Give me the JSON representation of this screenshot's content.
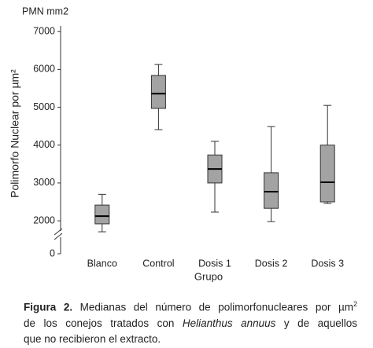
{
  "chart_data": {
    "type": "box",
    "unit_label": "PMN mm2",
    "ylabel": "Polimorfo Nuclear por µm²",
    "xlabel": "Grupo",
    "categories": [
      "Blanco",
      "Control",
      "Dosis 1",
      "Dosis 2",
      "Dosis 3"
    ],
    "boxes": [
      {
        "whisker_low": 1710,
        "q1": 1920,
        "median": 2125,
        "q3": 2415,
        "whisker_high": 2700
      },
      {
        "whisker_low": 4410,
        "q1": 4970,
        "median": 5360,
        "q3": 5840,
        "whisker_high": 6130
      },
      {
        "whisker_low": 2230,
        "q1": 3000,
        "median": 3370,
        "q3": 3740,
        "whisker_high": 4100
      },
      {
        "whisker_low": 1980,
        "q1": 2330,
        "median": 2770,
        "q3": 3270,
        "whisker_high": 4490
      },
      {
        "whisker_low": 2460,
        "q1": 2500,
        "median": 3020,
        "q3": 4000,
        "whisker_high": 5050
      }
    ],
    "color": "#a3a3a3",
    "ylim": [
      1130,
      7150
    ],
    "yticks": [
      0,
      2000,
      3000,
      4000,
      5000,
      6000,
      7000
    ],
    "axis_break": true
  },
  "caption": {
    "label": "Figura 2.",
    "line1": "Medianas del número de polimorfonucleares por µm",
    "superscript": "2",
    "line2_start": "de los conejos tratados con",
    "species": "Helianthus annuus",
    "line2_end": "y de aquellos",
    "line3": "que no recibieron el extracto."
  }
}
